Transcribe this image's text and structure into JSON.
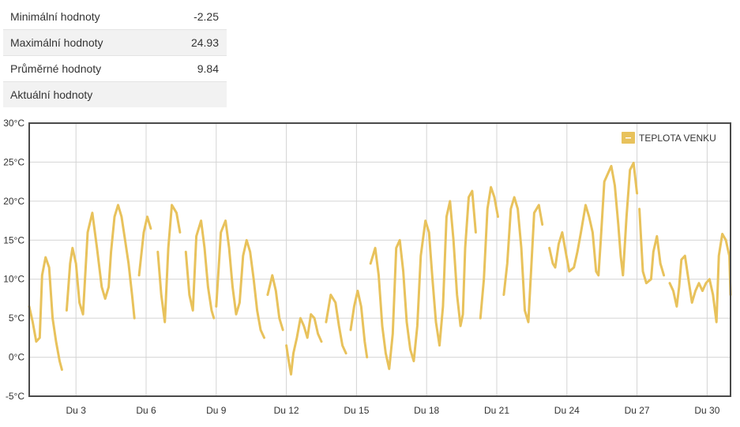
{
  "stats": {
    "rows": [
      {
        "label": "Minimální hodnoty",
        "value": "-2.25"
      },
      {
        "label": "Maximální hodnoty",
        "value": "24.93"
      },
      {
        "label": "Průměrné hodnoty",
        "value": "9.84"
      },
      {
        "label": "Aktuální hodnoty",
        "value": ""
      }
    ]
  },
  "colors": {
    "series": "#e8c25c",
    "frame": "#4a4a4a",
    "grid": "#d4d4d4"
  },
  "chart_data": {
    "type": "line",
    "title": "",
    "xlabel": "",
    "ylabel": "",
    "legend_position": "top-right",
    "grid": true,
    "xlim": [
      1,
      31
    ],
    "ylim": [
      -5,
      30
    ],
    "y_ticks": [
      -5,
      0,
      5,
      10,
      15,
      20,
      25,
      30
    ],
    "y_tick_labels": [
      "-5°C",
      "0°C",
      "5°C",
      "10°C",
      "15°C",
      "20°C",
      "25°C",
      "30°C"
    ],
    "x_ticks": [
      3,
      6,
      9,
      12,
      15,
      18,
      21,
      24,
      27,
      30
    ],
    "x_tick_labels": [
      "Du 3",
      "Du 6",
      "Du 9",
      "Du 12",
      "Du 15",
      "Du 18",
      "Du 21",
      "Du 24",
      "Du 27",
      "Du 30"
    ],
    "series": [
      {
        "name": "TEPLOTA VENKU",
        "segments": [
          [
            [
              1.0,
              6.5
            ],
            [
              1.15,
              4.5
            ],
            [
              1.3,
              2.0
            ],
            [
              1.45,
              2.5
            ],
            [
              1.55,
              10.5
            ],
            [
              1.7,
              12.8
            ],
            [
              1.85,
              11.5
            ],
            [
              2.0,
              5.0
            ],
            [
              2.15,
              2.0
            ],
            [
              2.3,
              -0.5
            ],
            [
              2.4,
              -1.6
            ]
          ],
          [
            [
              2.6,
              6.0
            ],
            [
              2.75,
              12.0
            ],
            [
              2.85,
              14.0
            ],
            [
              3.0,
              12.0
            ],
            [
              3.15,
              7.0
            ],
            [
              3.3,
              5.5
            ],
            [
              3.5,
              16.0
            ],
            [
              3.7,
              18.5
            ],
            [
              3.9,
              14.0
            ],
            [
              4.1,
              9.0
            ],
            [
              4.25,
              7.5
            ],
            [
              4.4,
              9.0
            ],
            [
              4.5,
              13.5
            ],
            [
              4.65,
              18.0
            ],
            [
              4.8,
              19.5
            ],
            [
              4.95,
              18.0
            ],
            [
              5.1,
              15.0
            ],
            [
              5.25,
              12.0
            ],
            [
              5.4,
              8.0
            ],
            [
              5.5,
              5.0
            ]
          ],
          [
            [
              5.7,
              10.5
            ],
            [
              5.9,
              16.0
            ],
            [
              6.05,
              18.0
            ],
            [
              6.2,
              16.5
            ]
          ],
          [
            [
              6.5,
              13.5
            ],
            [
              6.65,
              8.0
            ],
            [
              6.8,
              4.5
            ],
            [
              6.95,
              14.0
            ],
            [
              7.1,
              19.5
            ],
            [
              7.3,
              18.5
            ],
            [
              7.45,
              16.0
            ]
          ],
          [
            [
              7.7,
              13.5
            ],
            [
              7.85,
              8.0
            ],
            [
              8.0,
              6.0
            ],
            [
              8.15,
              15.5
            ],
            [
              8.35,
              17.5
            ],
            [
              8.5,
              14.0
            ],
            [
              8.65,
              9.0
            ],
            [
              8.8,
              6.0
            ],
            [
              8.9,
              5.0
            ]
          ],
          [
            [
              9.0,
              6.5
            ],
            [
              9.2,
              16.0
            ],
            [
              9.4,
              17.5
            ],
            [
              9.55,
              14.0
            ],
            [
              9.7,
              9.0
            ],
            [
              9.85,
              5.5
            ],
            [
              10.0,
              7.0
            ],
            [
              10.15,
              13.0
            ],
            [
              10.3,
              15.0
            ],
            [
              10.45,
              13.5
            ],
            [
              10.6,
              10.0
            ],
            [
              10.75,
              6.0
            ],
            [
              10.9,
              3.5
            ],
            [
              11.05,
              2.5
            ]
          ],
          [
            [
              11.2,
              8.0
            ],
            [
              11.4,
              10.5
            ],
            [
              11.55,
              8.5
            ],
            [
              11.7,
              5.0
            ],
            [
              11.85,
              3.5
            ]
          ],
          [
            [
              12.0,
              1.5
            ],
            [
              12.1,
              -0.5
            ],
            [
              12.2,
              -2.2
            ],
            [
              12.3,
              0.5
            ],
            [
              12.45,
              2.5
            ],
            [
              12.6,
              5.0
            ],
            [
              12.75,
              4.0
            ],
            [
              12.9,
              2.5
            ],
            [
              13.05,
              5.5
            ],
            [
              13.2,
              5.0
            ],
            [
              13.35,
              3.0
            ],
            [
              13.5,
              2.0
            ]
          ],
          [
            [
              13.7,
              4.5
            ],
            [
              13.9,
              8.0
            ],
            [
              14.1,
              7.0
            ],
            [
              14.25,
              4.0
            ],
            [
              14.4,
              1.5
            ],
            [
              14.55,
              0.5
            ]
          ],
          [
            [
              14.75,
              3.5
            ],
            [
              14.9,
              6.5
            ],
            [
              15.05,
              8.5
            ],
            [
              15.2,
              6.5
            ],
            [
              15.35,
              2.0
            ],
            [
              15.45,
              0.0
            ]
          ],
          [
            [
              15.6,
              12.0
            ],
            [
              15.8,
              14.0
            ],
            [
              15.95,
              10.5
            ],
            [
              16.1,
              4.0
            ],
            [
              16.25,
              0.5
            ],
            [
              16.4,
              -1.5
            ],
            [
              16.55,
              3.0
            ],
            [
              16.7,
              14.0
            ],
            [
              16.85,
              15.0
            ],
            [
              17.0,
              11.0
            ],
            [
              17.15,
              4.5
            ],
            [
              17.3,
              1.0
            ],
            [
              17.45,
              -0.5
            ],
            [
              17.6,
              4.0
            ],
            [
              17.75,
              13.0
            ],
            [
              17.95,
              17.5
            ],
            [
              18.1,
              16.0
            ],
            [
              18.25,
              10.0
            ],
            [
              18.4,
              4.5
            ],
            [
              18.55,
              1.5
            ],
            [
              18.7,
              6.5
            ],
            [
              18.85,
              18.0
            ],
            [
              19.0,
              20.0
            ],
            [
              19.15,
              15.0
            ],
            [
              19.3,
              8.0
            ],
            [
              19.45,
              4.0
            ],
            [
              19.55,
              5.5
            ],
            [
              19.65,
              14.0
            ],
            [
              19.8,
              20.5
            ],
            [
              19.95,
              21.3
            ],
            [
              20.1,
              16.0
            ]
          ],
          [
            [
              20.3,
              5.0
            ],
            [
              20.45,
              10.0
            ],
            [
              20.6,
              19.0
            ],
            [
              20.75,
              21.8
            ],
            [
              20.9,
              20.5
            ],
            [
              21.05,
              18.0
            ]
          ],
          [
            [
              21.3,
              8.0
            ],
            [
              21.45,
              12.0
            ],
            [
              21.6,
              19.0
            ],
            [
              21.75,
              20.5
            ],
            [
              21.9,
              19.0
            ],
            [
              22.05,
              14.0
            ],
            [
              22.2,
              6.0
            ],
            [
              22.35,
              4.5
            ],
            [
              22.45,
              10.0
            ],
            [
              22.6,
              18.5
            ],
            [
              22.8,
              19.5
            ],
            [
              22.95,
              17.0
            ]
          ],
          [
            [
              23.25,
              14.0
            ],
            [
              23.4,
              12.0
            ],
            [
              23.5,
              11.5
            ],
            [
              23.65,
              14.5
            ],
            [
              23.8,
              16.0
            ],
            [
              23.95,
              13.5
            ],
            [
              24.1,
              11.0
            ],
            [
              24.3,
              11.5
            ],
            [
              24.45,
              13.5
            ],
            [
              24.6,
              16.0
            ],
            [
              24.8,
              19.5
            ],
            [
              24.95,
              18.0
            ],
            [
              25.1,
              16.0
            ],
            [
              25.25,
              11.0
            ],
            [
              25.35,
              10.5
            ],
            [
              25.45,
              15.0
            ],
            [
              25.6,
              22.5
            ],
            [
              25.75,
              23.5
            ],
            [
              25.9,
              24.5
            ],
            [
              26.05,
              22.0
            ],
            [
              26.2,
              17.0
            ],
            [
              26.3,
              13.0
            ],
            [
              26.4,
              10.5
            ],
            [
              26.55,
              18.0
            ],
            [
              26.7,
              24.0
            ],
            [
              26.85,
              24.9
            ],
            [
              27.0,
              21.0
            ]
          ],
          [
            [
              27.1,
              19.0
            ],
            [
              27.25,
              11.0
            ],
            [
              27.4,
              9.5
            ],
            [
              27.6,
              10.0
            ],
            [
              27.7,
              13.5
            ],
            [
              27.85,
              15.5
            ],
            [
              28.0,
              12.0
            ],
            [
              28.15,
              10.5
            ]
          ],
          [
            [
              28.4,
              9.5
            ],
            [
              28.55,
              8.5
            ],
            [
              28.7,
              6.5
            ],
            [
              28.8,
              9.0
            ],
            [
              28.9,
              12.5
            ],
            [
              29.05,
              13.0
            ],
            [
              29.2,
              10.0
            ],
            [
              29.35,
              7.0
            ],
            [
              29.5,
              8.5
            ],
            [
              29.65,
              9.5
            ],
            [
              29.8,
              8.5
            ],
            [
              29.95,
              9.5
            ],
            [
              30.1,
              10.0
            ],
            [
              30.25,
              8.0
            ],
            [
              30.4,
              4.5
            ],
            [
              30.5,
              13.0
            ],
            [
              30.65,
              15.8
            ],
            [
              30.8,
              15.0
            ],
            [
              30.95,
              13.0
            ],
            [
              31.0,
              8.0
            ]
          ]
        ]
      }
    ]
  }
}
